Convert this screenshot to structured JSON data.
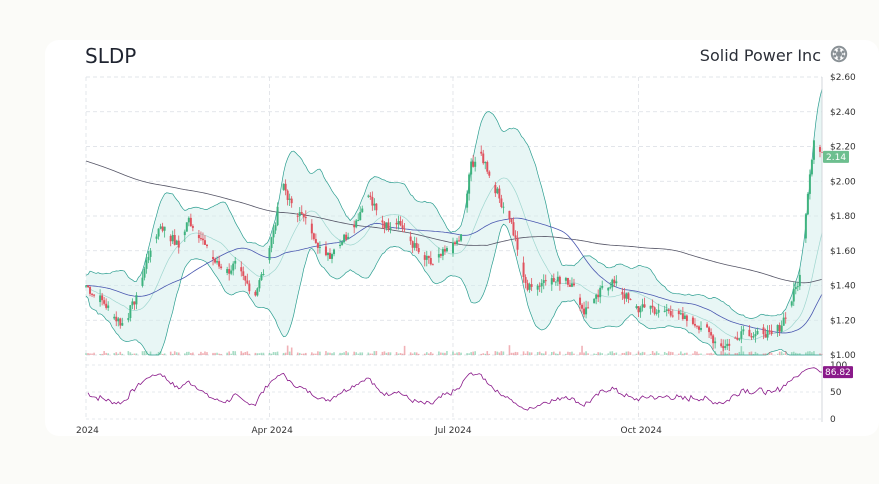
{
  "header": {
    "ticker": "SLDP",
    "company": "Solid Power Inc"
  },
  "colors": {
    "up": "#3fb37f",
    "down": "#e0525e",
    "band_fill": "#d6efec",
    "band_line": "#2a9d8f",
    "ma_long": "#555566",
    "ma_mid": "#4a58b0",
    "rsi": "#8a1a8a",
    "badge_price": "#6dbf8f",
    "badge_rsi": "#8a1a8a"
  },
  "chart_data": {
    "type": "candlestick",
    "title": "SLDP",
    "price_axis": {
      "ticks": [
        1.0,
        1.2,
        1.4,
        1.6,
        1.8,
        2.0,
        2.2,
        2.4,
        2.6
      ],
      "tick_labels": [
        "$1.00",
        "$1.20",
        "$1.40",
        "$1.60",
        "$1.80",
        "$2.00",
        "$2.20",
        "$2.40",
        "$2.60"
      ],
      "range": [
        1.0,
        2.6
      ]
    },
    "x_axis": {
      "labels": [
        "2024",
        "Apr 2024",
        "Jul 2024",
        "Oct 2024"
      ],
      "label_dates": [
        "2024-01-01",
        "2024-04-01",
        "2024-07-01",
        "2024-10-01"
      ],
      "range": [
        "2024-01-01",
        "2024-12-31"
      ]
    },
    "last_price": "2.14",
    "rsi": {
      "ticks": [
        0,
        50,
        100
      ],
      "tick_labels": [
        "0",
        "50",
        "100"
      ],
      "last_value": "86.82"
    },
    "price_path": [
      [
        "2024-01-01",
        1.4
      ],
      [
        "2024-01-05",
        1.35
      ],
      [
        "2024-01-10",
        1.3
      ],
      [
        "2024-01-15",
        1.22
      ],
      [
        "2024-01-19",
        1.18
      ],
      [
        "2024-01-24",
        1.28
      ],
      [
        "2024-01-29",
        1.45
      ],
      [
        "2024-02-02",
        1.62
      ],
      [
        "2024-02-07",
        1.75
      ],
      [
        "2024-02-12",
        1.68
      ],
      [
        "2024-02-16",
        1.62
      ],
      [
        "2024-02-21",
        1.78
      ],
      [
        "2024-02-26",
        1.7
      ],
      [
        "2024-03-01",
        1.6
      ],
      [
        "2024-03-06",
        1.52
      ],
      [
        "2024-03-11",
        1.48
      ],
      [
        "2024-03-15",
        1.52
      ],
      [
        "2024-03-20",
        1.42
      ],
      [
        "2024-03-25",
        1.36
      ],
      [
        "2024-03-29",
        1.48
      ],
      [
        "2024-04-03",
        1.72
      ],
      [
        "2024-04-08",
        1.98
      ],
      [
        "2024-04-12",
        1.85
      ],
      [
        "2024-04-17",
        1.8
      ],
      [
        "2024-04-22",
        1.72
      ],
      [
        "2024-04-26",
        1.62
      ],
      [
        "2024-05-01",
        1.58
      ],
      [
        "2024-05-06",
        1.65
      ],
      [
        "2024-05-10",
        1.7
      ],
      [
        "2024-05-15",
        1.8
      ],
      [
        "2024-05-20",
        1.92
      ],
      [
        "2024-05-24",
        1.82
      ],
      [
        "2024-05-29",
        1.74
      ],
      [
        "2024-06-03",
        1.78
      ],
      [
        "2024-06-07",
        1.72
      ],
      [
        "2024-06-12",
        1.62
      ],
      [
        "2024-06-17",
        1.55
      ],
      [
        "2024-06-21",
        1.52
      ],
      [
        "2024-06-26",
        1.58
      ],
      [
        "2024-07-01",
        1.62
      ],
      [
        "2024-07-05",
        1.68
      ],
      [
        "2024-07-10",
        2.1
      ],
      [
        "2024-07-15",
        2.15
      ],
      [
        "2024-07-19",
        2.05
      ],
      [
        "2024-07-24",
        1.9
      ],
      [
        "2024-07-29",
        1.8
      ],
      [
        "2024-08-02",
        1.6
      ],
      [
        "2024-08-07",
        1.38
      ],
      [
        "2024-08-12",
        1.4
      ],
      [
        "2024-08-16",
        1.44
      ],
      [
        "2024-08-21",
        1.42
      ],
      [
        "2024-08-26",
        1.45
      ],
      [
        "2024-08-30",
        1.38
      ],
      [
        "2024-09-04",
        1.25
      ],
      [
        "2024-09-09",
        1.3
      ],
      [
        "2024-09-13",
        1.38
      ],
      [
        "2024-09-18",
        1.42
      ],
      [
        "2024-09-23",
        1.36
      ],
      [
        "2024-09-27",
        1.3
      ],
      [
        "2024-10-02",
        1.26
      ],
      [
        "2024-10-07",
        1.28
      ],
      [
        "2024-10-11",
        1.24
      ],
      [
        "2024-10-16",
        1.26
      ],
      [
        "2024-10-21",
        1.22
      ],
      [
        "2024-10-25",
        1.2
      ],
      [
        "2024-10-30",
        1.18
      ],
      [
        "2024-11-04",
        1.14
      ],
      [
        "2024-11-08",
        1.08
      ],
      [
        "2024-11-13",
        1.05
      ],
      [
        "2024-11-18",
        1.1
      ],
      [
        "2024-11-22",
        1.15
      ],
      [
        "2024-11-27",
        1.12
      ],
      [
        "2024-12-02",
        1.14
      ],
      [
        "2024-12-06",
        1.1
      ],
      [
        "2024-12-11",
        1.18
      ],
      [
        "2024-12-16",
        1.32
      ],
      [
        "2024-12-20",
        1.45
      ],
      [
        "2024-12-24",
        1.95
      ],
      [
        "2024-12-27",
        2.25
      ],
      [
        "2024-12-31",
        2.14
      ]
    ]
  }
}
